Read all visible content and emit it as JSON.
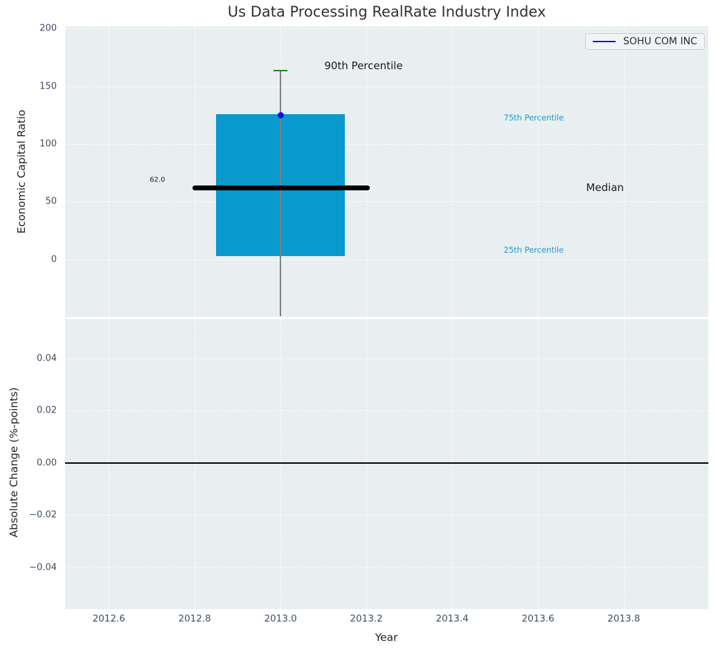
{
  "title": "Us Data Processing RealRate Industry Index",
  "legend": {
    "label": "SOHU COM INC"
  },
  "colors": {
    "plot_bg": "#e9eef0",
    "box_fill": "#0899cd",
    "median_line": "#000000",
    "whisker": "#808080",
    "p90_cap": "#148714",
    "company_dot": "#1111e0",
    "legend_line": "#1111e0",
    "annotation_cyan": "#1c9ad0",
    "annotation_dark": "#1a1a1a",
    "tick_label": "#3e4d62",
    "zero_line": "#000000"
  },
  "chart_data": [
    {
      "type": "boxplot",
      "title": "Us Data Processing RealRate Industry Index",
      "ylabel": "Economic Capital Ratio",
      "xlabel": "",
      "grid": true,
      "legend_position": "upper right",
      "xlim": [
        2012.498,
        2013.997
      ],
      "ylim": [
        -50,
        202
      ],
      "yticks": [
        {
          "value": 0,
          "label": "0"
        },
        {
          "value": 50,
          "label": "50"
        },
        {
          "value": 100,
          "label": "100"
        },
        {
          "value": 150,
          "label": "150"
        },
        {
          "value": 200,
          "label": "200"
        }
      ],
      "xticks": [
        {
          "value": 2012.6,
          "label": ""
        },
        {
          "value": 2012.8,
          "label": ""
        },
        {
          "value": 2013.0,
          "label": ""
        },
        {
          "value": 2013.2,
          "label": ""
        },
        {
          "value": 2013.4,
          "label": ""
        },
        {
          "value": 2013.6,
          "label": ""
        },
        {
          "value": 2013.8,
          "label": ""
        }
      ],
      "box": {
        "x": 2013.0,
        "x_left": 2012.85,
        "x_right": 2013.15,
        "q1": 3,
        "median": 62.0,
        "q3": 126,
        "p90": 163.5,
        "whisker_low_clipped_at": -50,
        "median_line_x_left": 2012.795,
        "median_line_x_right": 2013.208,
        "cap_x_left": 2012.984,
        "cap_x_right": 2013.016,
        "median_value_label": "62.0"
      },
      "points": [
        {
          "name": "SOHU COM INC",
          "x": 2013.0,
          "y": 125
        }
      ],
      "annotations": [
        {
          "text": "90th Percentile",
          "x": 2013.102,
          "y": 168,
          "align": "left",
          "color": "dark",
          "size": 15
        },
        {
          "text": "75th Percentile",
          "x": 2013.52,
          "y": 123,
          "align": "left",
          "color": "cyan",
          "size": 11.5
        },
        {
          "text": "Median",
          "x": 2013.712,
          "y": 62,
          "align": "left",
          "color": "dark",
          "size": 15
        },
        {
          "text": "25th Percentile",
          "x": 2013.52,
          "y": 8,
          "align": "left",
          "color": "cyan",
          "size": 11.5
        },
        {
          "text": "62.0",
          "x": 2012.731,
          "y": 69,
          "align": "right",
          "color": "dark",
          "size": 10
        }
      ]
    },
    {
      "type": "line",
      "title": "",
      "ylabel": "Absolute Change (%-points)",
      "xlabel": "Year",
      "grid": true,
      "xlim": [
        2012.498,
        2013.997
      ],
      "ylim": [
        -0.0559,
        0.0551
      ],
      "zero_line_y": 0.0,
      "series": [],
      "yticks": [
        {
          "value": -0.04,
          "label": "−0.04"
        },
        {
          "value": -0.02,
          "label": "−0.02"
        },
        {
          "value": 0.0,
          "label": "0.00"
        },
        {
          "value": 0.02,
          "label": "0.02"
        },
        {
          "value": 0.04,
          "label": "0.04"
        }
      ],
      "xticks": [
        {
          "value": 2012.6,
          "label": "2012.6"
        },
        {
          "value": 2012.8,
          "label": "2012.8"
        },
        {
          "value": 2013.0,
          "label": "2013.0"
        },
        {
          "value": 2013.2,
          "label": "2013.2"
        },
        {
          "value": 2013.4,
          "label": "2013.4"
        },
        {
          "value": 2013.6,
          "label": "2013.6"
        },
        {
          "value": 2013.8,
          "label": "2013.8"
        }
      ]
    }
  ]
}
